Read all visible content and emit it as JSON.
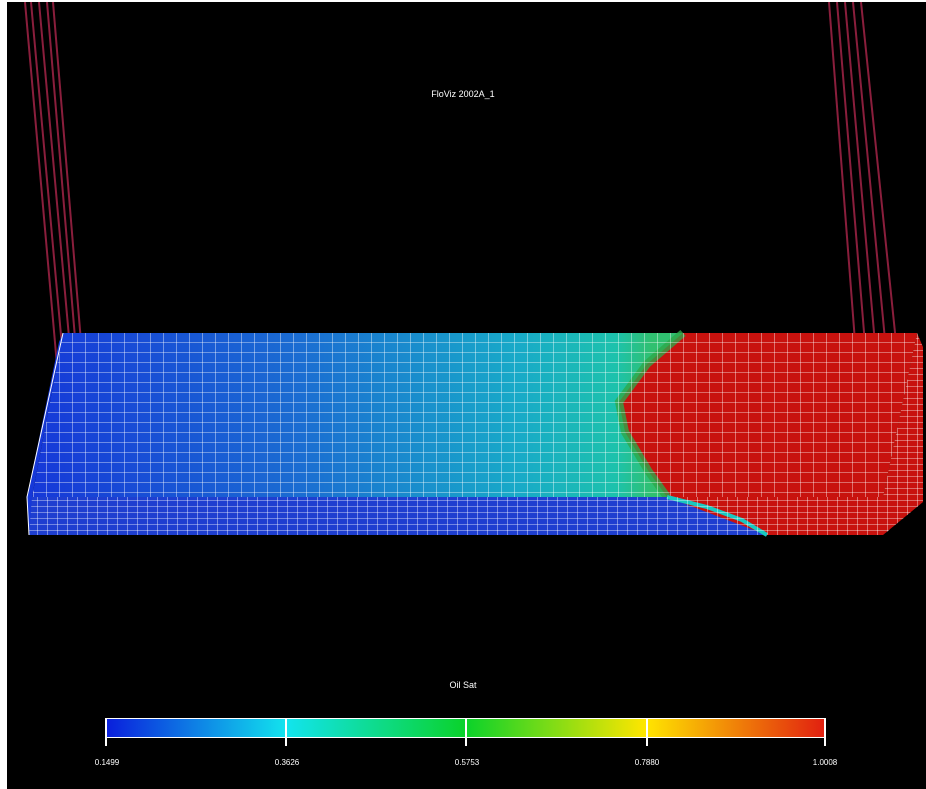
{
  "title": "FloViz 2002A_1",
  "legend": {
    "title": "Oil Sat",
    "ticks": [
      "0.1499",
      "0.3626",
      "0.5753",
      "0.7880",
      "1.0008"
    ],
    "colors": [
      "#0a1fdc",
      "#12e4ee",
      "#0ad22a",
      "#ffe600",
      "#e11f10"
    ]
  },
  "scene": {
    "background": "#000000",
    "grid_line_color": "#ffffff",
    "well_color": "#8a1e3c",
    "front_colors": {
      "swept": "#1e3ed0",
      "mid": "#1ab6b0",
      "front": "#2ea84a",
      "oil": "#c8120e"
    }
  }
}
